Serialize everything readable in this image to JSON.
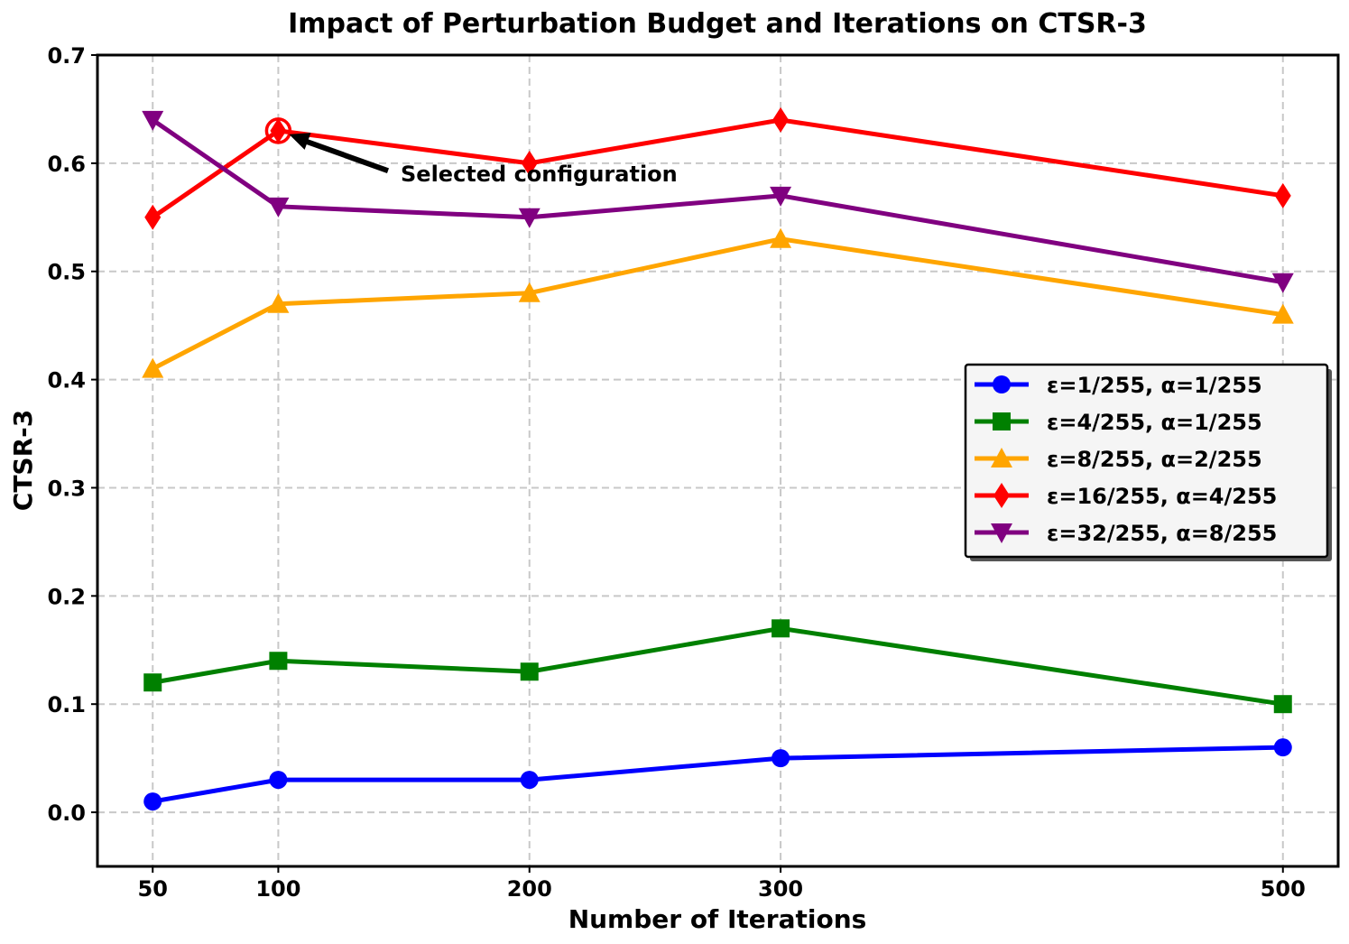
{
  "chart_data": {
    "type": "line",
    "title": "Impact of Perturbation Budget and Iterations on CTSR-3",
    "xlabel": "Number of Iterations",
    "ylabel": "CTSR-3",
    "x": [
      50,
      100,
      200,
      300,
      500
    ],
    "xticks": [
      "50",
      "100",
      "200",
      "300",
      "500"
    ],
    "xlim": [
      28,
      522
    ],
    "yticks": [
      "0.0",
      "0.1",
      "0.2",
      "0.3",
      "0.4",
      "0.5",
      "0.6",
      "0.7"
    ],
    "ytick_values": [
      0.0,
      0.1,
      0.2,
      0.3,
      0.4,
      0.5,
      0.6,
      0.7
    ],
    "ylim": [
      -0.05,
      0.7
    ],
    "grid": true,
    "legend_position": "center-right",
    "series": [
      {
        "name": "ε=1/255, α=1/255",
        "color": "#0000ff",
        "marker": "circle",
        "values": [
          0.01,
          0.03,
          0.03,
          0.05,
          0.06
        ]
      },
      {
        "name": "ε=4/255, α=1/255",
        "color": "#008000",
        "marker": "square",
        "values": [
          0.12,
          0.14,
          0.13,
          0.17,
          0.1
        ]
      },
      {
        "name": "ε=8/255, α=2/255",
        "color": "#ffa500",
        "marker": "triangle-up",
        "values": [
          0.41,
          0.47,
          0.48,
          0.53,
          0.46
        ]
      },
      {
        "name": "ε=16/255, α=4/255",
        "color": "#ff0000",
        "marker": "diamond",
        "values": [
          0.55,
          0.63,
          0.6,
          0.64,
          0.57
        ]
      },
      {
        "name": "ε=32/255, α=8/255",
        "color": "#800080",
        "marker": "triangle-down",
        "values": [
          0.64,
          0.56,
          0.55,
          0.57,
          0.49
        ]
      }
    ],
    "annotation": {
      "text": "Selected configuration",
      "point_x": 100,
      "point_y": 0.63,
      "text_x": 148,
      "text_y": 0.578,
      "color": "#ff0000"
    }
  }
}
